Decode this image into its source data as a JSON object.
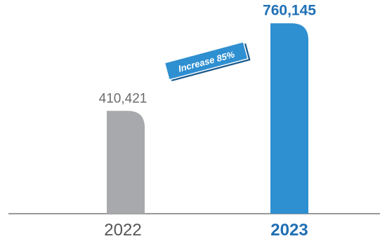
{
  "chart_data": {
    "type": "bar",
    "categories": [
      "2022",
      "2023"
    ],
    "values": [
      410421,
      760145
    ],
    "value_labels": [
      "410,421",
      "760,145"
    ],
    "ylim": [
      0,
      800000
    ],
    "grid": false,
    "legend": "none",
    "annotation": "Increase 85%",
    "colors": {
      "bar_2022": "#a7a9ac",
      "bar_2023": "#2e8fd1",
      "highlight_text": "#1f6fb5",
      "axis_line": "#333333",
      "badge_fill": "#2e8fd1",
      "badge_shadow": "#1a5a8e"
    }
  }
}
